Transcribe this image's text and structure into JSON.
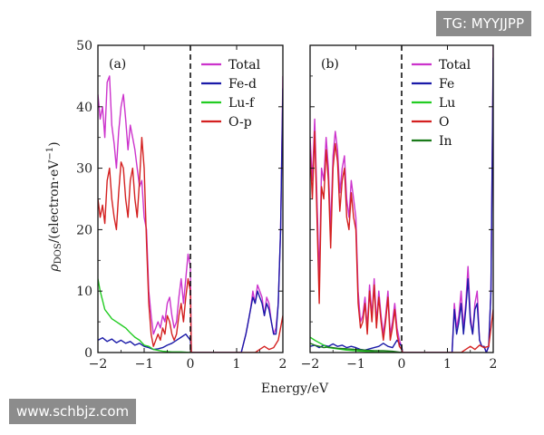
{
  "watermarks": {
    "top_right": "TG: MYYJJPP",
    "bottom_left": "www.schbjz.com"
  },
  "colors": {
    "Total": "#cc33cc",
    "Fe": "#1a1aa8",
    "Lu": "#22cc22",
    "O": "#d42020",
    "In": "#1a7a1a"
  },
  "chart_data": [
    {
      "type": "line",
      "panel": "(a)",
      "xlabel": "Energy/eV",
      "ylabel": "ρ_DOS/(electron·eV⁻¹)",
      "xlim": [
        -2,
        2
      ],
      "ylim": [
        0,
        50
      ],
      "xticks": [
        -2,
        -1,
        0,
        1,
        2
      ],
      "yticks": [
        0,
        10,
        20,
        30,
        40,
        50
      ],
      "fermi_level": 0,
      "legend": [
        "Total",
        "Fe-d",
        "Lu-f",
        "O-p"
      ],
      "series": [
        {
          "name": "Total",
          "color": "#cc33cc",
          "x": [
            -2.0,
            -1.95,
            -1.9,
            -1.85,
            -1.8,
            -1.75,
            -1.7,
            -1.65,
            -1.6,
            -1.55,
            -1.5,
            -1.45,
            -1.4,
            -1.35,
            -1.3,
            -1.25,
            -1.2,
            -1.15,
            -1.1,
            -1.05,
            -1.0,
            -0.95,
            -0.9,
            -0.85,
            -0.8,
            -0.75,
            -0.7,
            -0.65,
            -0.6,
            -0.55,
            -0.5,
            -0.45,
            -0.4,
            -0.35,
            -0.3,
            -0.25,
            -0.2,
            -0.15,
            -0.1,
            -0.05,
            0.0,
            0.02,
            1.1,
            1.2,
            1.25,
            1.3,
            1.35,
            1.4,
            1.45,
            1.5,
            1.55,
            1.6,
            1.65,
            1.7,
            1.75,
            1.8,
            1.85,
            1.9,
            1.95,
            2.0
          ],
          "y": [
            42,
            38,
            40,
            35,
            44,
            45,
            37,
            34,
            30,
            36,
            40,
            42,
            38,
            33,
            37,
            35,
            33,
            30,
            27,
            28,
            22,
            20,
            10,
            6,
            3,
            4,
            5,
            4,
            6,
            5,
            8,
            9,
            6,
            4,
            5,
            9,
            12,
            8,
            12,
            16,
            14,
            0,
            0,
            3,
            5,
            7,
            10,
            8,
            11,
            10,
            9,
            6,
            9,
            8,
            5,
            3,
            4,
            8,
            20,
            45
          ]
        },
        {
          "name": "Fe-d",
          "color": "#1a1aa8",
          "x": [
            -2.0,
            -1.9,
            -1.8,
            -1.7,
            -1.6,
            -1.5,
            -1.4,
            -1.3,
            -1.2,
            -1.1,
            -1.0,
            -0.9,
            -0.8,
            -0.7,
            -0.6,
            -0.5,
            -0.4,
            -0.3,
            -0.2,
            -0.1,
            0.0,
            0.02,
            1.1,
            1.2,
            1.25,
            1.3,
            1.35,
            1.4,
            1.45,
            1.5,
            1.55,
            1.6,
            1.65,
            1.7,
            1.75,
            1.8,
            1.85,
            1.9,
            1.95,
            2.0
          ],
          "y": [
            2,
            2.4,
            1.8,
            2.2,
            1.6,
            2.0,
            1.5,
            1.8,
            1.2,
            1.5,
            1.0,
            0.8,
            0.5,
            0.6,
            0.8,
            1.2,
            1.5,
            2.0,
            2.5,
            3.0,
            2.0,
            0,
            0,
            3,
            5,
            7,
            9,
            8,
            10,
            9,
            8,
            6,
            8,
            7,
            5,
            3,
            3,
            8,
            20,
            43
          ]
        },
        {
          "name": "Lu-f",
          "color": "#22cc22",
          "x": [
            -2.0,
            -1.95,
            -1.9,
            -1.85,
            -1.8,
            -1.75,
            -1.7,
            -1.6,
            -1.5,
            -1.4,
            -1.3,
            -1.2,
            -1.1,
            -1.0,
            -0.9,
            -0.8,
            -0.6,
            -0.4,
            -0.2,
            0.0
          ],
          "y": [
            12,
            10,
            8.5,
            7,
            6.5,
            6,
            5.5,
            5,
            4.5,
            4,
            3.2,
            2.5,
            2,
            1.2,
            1,
            0.5,
            0.2,
            0.1,
            0.1,
            0
          ]
        },
        {
          "name": "O-p",
          "color": "#d42020",
          "x": [
            -2.0,
            -1.95,
            -1.9,
            -1.85,
            -1.8,
            -1.75,
            -1.7,
            -1.65,
            -1.6,
            -1.55,
            -1.5,
            -1.45,
            -1.4,
            -1.35,
            -1.3,
            -1.25,
            -1.2,
            -1.15,
            -1.1,
            -1.05,
            -1.0,
            -0.95,
            -0.9,
            -0.85,
            -0.8,
            -0.75,
            -0.7,
            -0.65,
            -0.6,
            -0.55,
            -0.5,
            -0.45,
            -0.4,
            -0.35,
            -0.3,
            -0.25,
            -0.2,
            -0.15,
            -0.1,
            -0.05,
            0.0,
            0.02,
            1.4,
            1.5,
            1.6,
            1.7,
            1.8,
            1.9,
            2.0
          ],
          "y": [
            25,
            22,
            24,
            21,
            28,
            30,
            25,
            22,
            20,
            26,
            31,
            30,
            25,
            22,
            28,
            30,
            25,
            22,
            28,
            35,
            30,
            18,
            8,
            3,
            1,
            2,
            3,
            2,
            4,
            3,
            6,
            5,
            3,
            2,
            3,
            6,
            8,
            5,
            9,
            12,
            10,
            0,
            0,
            0.5,
            1,
            0.5,
            0.8,
            2,
            6
          ]
        }
      ]
    },
    {
      "type": "line",
      "panel": "(b)",
      "xlabel": "Energy/eV",
      "xlim": [
        -2,
        2
      ],
      "ylim": [
        0,
        50
      ],
      "xticks": [
        -2,
        -1,
        0,
        1,
        2
      ],
      "yticks": [
        0,
        10,
        20,
        30,
        40,
        50
      ],
      "fermi_level": 0,
      "legend": [
        "Total",
        "Fe",
        "Lu",
        "O",
        "In"
      ],
      "series": [
        {
          "name": "Total",
          "color": "#cc33cc",
          "x": [
            -2.0,
            -1.95,
            -1.9,
            -1.85,
            -1.8,
            -1.75,
            -1.7,
            -1.65,
            -1.6,
            -1.55,
            -1.5,
            -1.45,
            -1.4,
            -1.35,
            -1.3,
            -1.25,
            -1.2,
            -1.15,
            -1.1,
            -1.05,
            -1.0,
            -0.95,
            -0.9,
            -0.85,
            -0.8,
            -0.75,
            -0.7,
            -0.65,
            -0.6,
            -0.55,
            -0.5,
            -0.45,
            -0.4,
            -0.35,
            -0.3,
            -0.25,
            -0.2,
            -0.15,
            -0.1,
            -0.05,
            0.0,
            0.02,
            1.05,
            1.1,
            1.15,
            1.2,
            1.25,
            1.3,
            1.35,
            1.4,
            1.45,
            1.5,
            1.55,
            1.6,
            1.65,
            1.7,
            1.75,
            1.8,
            1.85,
            1.9,
            1.95,
            2.0
          ],
          "y": [
            35,
            28,
            38,
            25,
            12,
            30,
            28,
            35,
            30,
            20,
            32,
            36,
            33,
            26,
            30,
            32,
            25,
            22,
            28,
            25,
            22,
            10,
            5,
            6,
            9,
            4,
            11,
            6,
            12,
            5,
            10,
            6,
            3,
            6,
            10,
            3,
            5,
            8,
            4,
            2,
            1,
            0,
            0,
            0,
            8,
            4,
            6,
            10,
            4,
            8,
            14,
            6,
            3,
            8,
            10,
            2,
            1,
            1,
            0,
            1,
            10,
            50
          ]
        },
        {
          "name": "Fe",
          "color": "#1a1aa8",
          "x": [
            -2.0,
            -1.9,
            -1.8,
            -1.7,
            -1.6,
            -1.5,
            -1.4,
            -1.3,
            -1.2,
            -1.1,
            -1.0,
            -0.9,
            -0.8,
            -0.7,
            -0.6,
            -0.5,
            -0.4,
            -0.3,
            -0.2,
            -0.1,
            0.0,
            0.02,
            1.05,
            1.1,
            1.15,
            1.2,
            1.25,
            1.3,
            1.35,
            1.4,
            1.45,
            1.5,
            1.55,
            1.6,
            1.65,
            1.7,
            1.75,
            1.8,
            1.85,
            1.9,
            1.95,
            2.0
          ],
          "y": [
            1,
            1.2,
            0.8,
            1.2,
            1,
            1.4,
            1,
            1.2,
            0.8,
            1,
            0.8,
            0.5,
            0.4,
            0.6,
            0.8,
            1,
            1.5,
            1,
            0.8,
            2,
            1,
            0,
            0,
            0,
            7,
            3,
            5,
            8,
            3,
            7,
            12,
            5,
            3,
            7,
            8,
            2,
            1,
            1,
            0,
            1,
            10,
            48
          ]
        },
        {
          "name": "Lu",
          "color": "#22cc22",
          "x": [
            -2.0,
            -1.9,
            -1.8,
            -1.7,
            -1.6,
            -1.4,
            -1.2,
            -1.0,
            -0.6,
            -0.2,
            0.0
          ],
          "y": [
            2.5,
            2,
            1.6,
            1.2,
            0.8,
            0.6,
            0.4,
            0.3,
            0.1,
            0.05,
            0
          ]
        },
        {
          "name": "O",
          "color": "#d42020",
          "x": [
            -2.0,
            -1.95,
            -1.9,
            -1.85,
            -1.8,
            -1.75,
            -1.7,
            -1.65,
            -1.6,
            -1.55,
            -1.5,
            -1.45,
            -1.4,
            -1.35,
            -1.3,
            -1.25,
            -1.2,
            -1.15,
            -1.1,
            -1.05,
            -1.0,
            -0.95,
            -0.9,
            -0.85,
            -0.8,
            -0.75,
            -0.7,
            -0.65,
            -0.6,
            -0.55,
            -0.5,
            -0.45,
            -0.4,
            -0.35,
            -0.3,
            -0.25,
            -0.2,
            -0.15,
            -0.1,
            -0.05,
            0.0,
            0.02,
            1.3,
            1.4,
            1.5,
            1.6,
            1.7,
            1.8,
            1.9,
            2.0
          ],
          "y": [
            33,
            25,
            36,
            22,
            8,
            27,
            25,
            33,
            28,
            17,
            30,
            34,
            31,
            23,
            28,
            30,
            22,
            20,
            26,
            22,
            20,
            8,
            4,
            5,
            8,
            3,
            10,
            5,
            11,
            4,
            9,
            5,
            2,
            5,
            9,
            2,
            4,
            7,
            3,
            1,
            0.5,
            0,
            0,
            0.5,
            1,
            0.5,
            1.2,
            0.8,
            1,
            7
          ]
        },
        {
          "name": "In",
          "color": "#1a7a1a",
          "x": [
            -2.0,
            -1.9,
            -1.8,
            -1.7,
            -1.6,
            -1.4,
            -1.2,
            -1.0,
            -0.8,
            -0.6,
            -0.4,
            -0.2,
            0.0
          ],
          "y": [
            1.5,
            1.2,
            1,
            0.8,
            0.9,
            0.7,
            0.6,
            0.5,
            0.4,
            0.3,
            0.3,
            0.2,
            0
          ]
        }
      ]
    }
  ]
}
